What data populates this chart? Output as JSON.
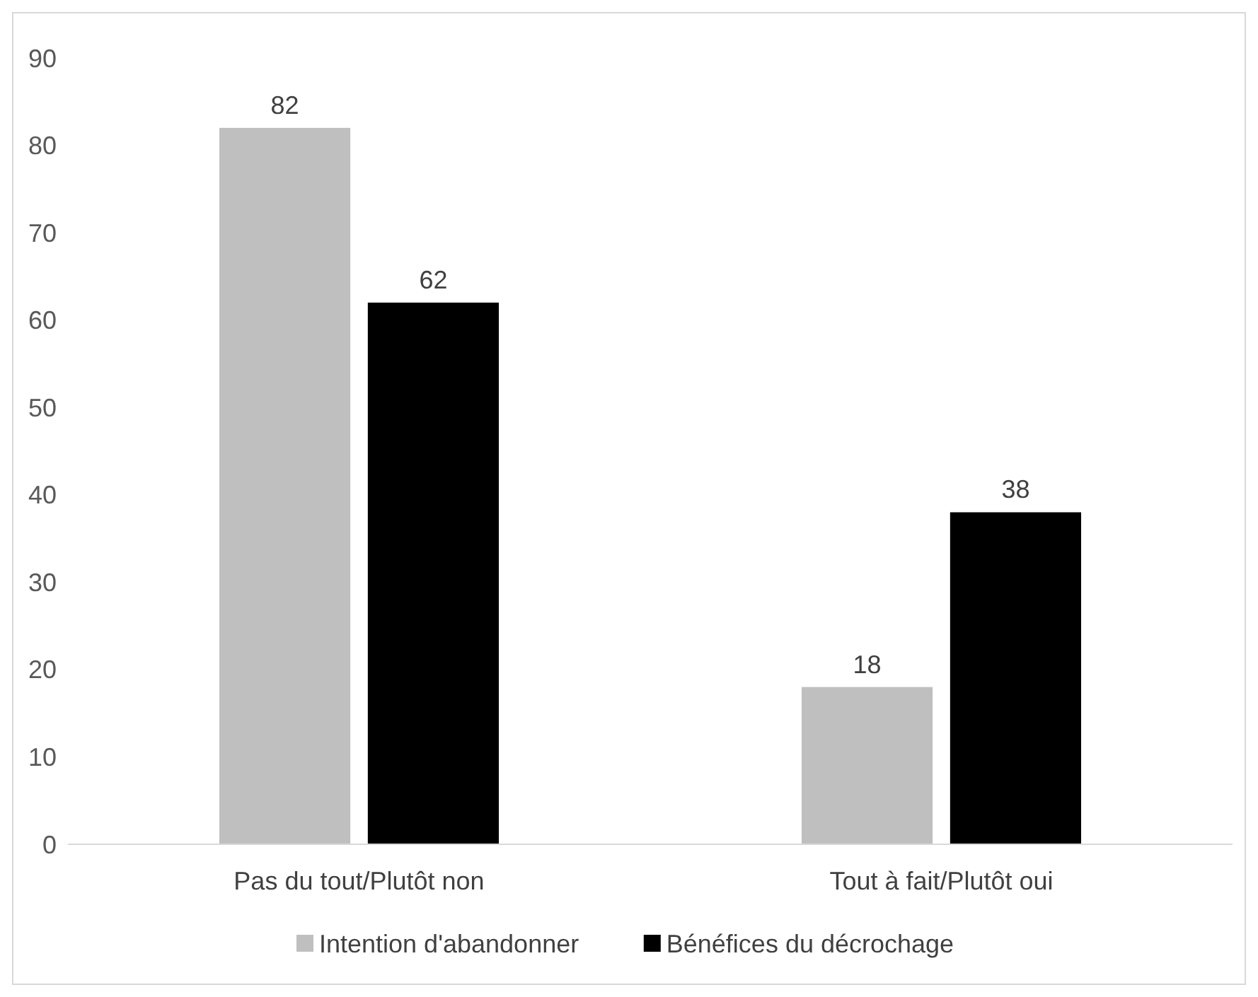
{
  "chart_data": {
    "type": "bar",
    "categories": [
      "Pas du tout/Plutôt non",
      "Tout à fait/Plutôt oui"
    ],
    "series": [
      {
        "name": "Intention d'abandonner",
        "color": "#bfbfbf",
        "values": [
          82,
          18
        ]
      },
      {
        "name": "Bénéfices du décrochage",
        "color": "#000000",
        "values": [
          62,
          38
        ]
      }
    ],
    "ylim": [
      0,
      90
    ],
    "yticks": [
      0,
      10,
      20,
      30,
      40,
      50,
      60,
      70,
      80,
      90
    ],
    "grid": false,
    "legend": "bottom",
    "data_labels": true
  }
}
